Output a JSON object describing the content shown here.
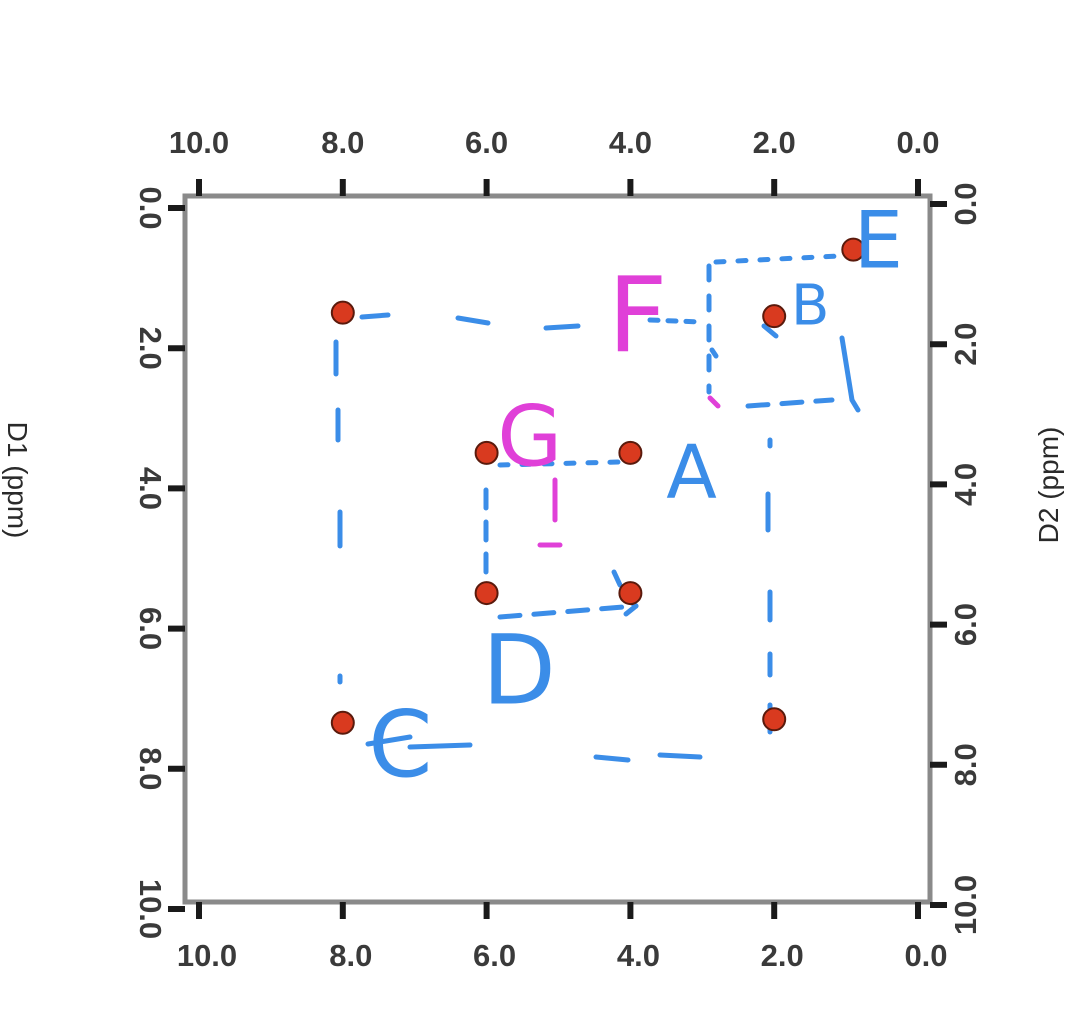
{
  "chart_data": {
    "type": "scatter",
    "title": "",
    "xlabel": "",
    "ylabel_left": "D1 (ppm)",
    "ylabel_right": "D2 (ppm)",
    "x_axis_reversed": true,
    "y_axis_reversed": true,
    "xlim": [
      10.0,
      0.0
    ],
    "ylim": [
      0.0,
      10.0
    ],
    "x_ticks": [
      "10.0",
      "8.0",
      "6.0",
      "4.0",
      "2.0",
      "0.0"
    ],
    "y_ticks": [
      "0.0",
      "2.0",
      "4.0",
      "6.0",
      "8.0",
      "10.0"
    ],
    "grid": false,
    "point_color": "#d93a1f",
    "series": [
      {
        "points": [
          {
            "x": 0.9,
            "y": 0.85
          },
          {
            "x": 2.0,
            "y": 1.8
          },
          {
            "x": 8.0,
            "y": 1.75
          },
          {
            "x": 6.0,
            "y": 3.75
          },
          {
            "x": 4.0,
            "y": 3.75
          },
          {
            "x": 6.0,
            "y": 5.75
          },
          {
            "x": 4.0,
            "y": 5.75
          },
          {
            "x": 8.0,
            "y": 7.6
          },
          {
            "x": 2.0,
            "y": 7.55
          }
        ]
      }
    ],
    "annotations": [
      {
        "text": "A",
        "color": "#3b8de8",
        "x": 3.15,
        "y": 4.1
      },
      {
        "text": "B",
        "color": "#3b8de8",
        "x": 1.5,
        "y": 1.7
      },
      {
        "text": "C",
        "color": "#3b8de8",
        "x": 7.2,
        "y": 8.0
      },
      {
        "text": "D",
        "color": "#3b8de8",
        "x": 5.55,
        "y": 6.95
      },
      {
        "text": "E",
        "color": "#3b8de8",
        "x": 0.55,
        "y": 0.8
      },
      {
        "text": "F",
        "color": "#e040d8",
        "x": 3.9,
        "y": 1.9
      },
      {
        "text": "G",
        "color": "#e040d8",
        "x": 5.4,
        "y": 3.6
      }
    ],
    "annotation_line_color": "#3b8de8"
  }
}
